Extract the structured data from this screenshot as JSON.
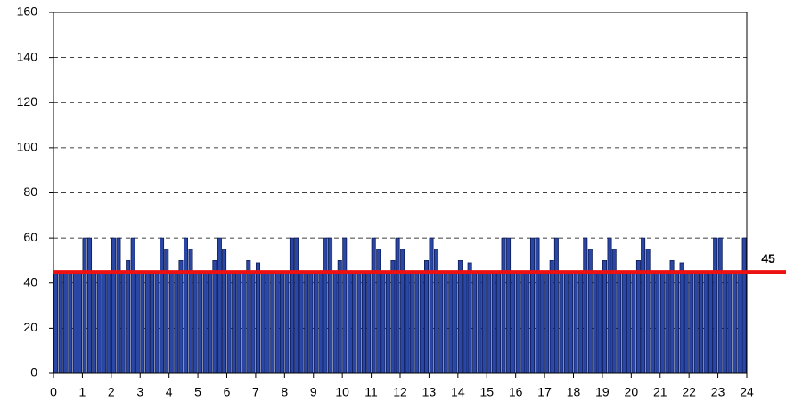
{
  "chart_data": {
    "type": "bar",
    "x": [
      0,
      0.17,
      0.33,
      0.5,
      0.67,
      0.83,
      1,
      1.17,
      1.33,
      1.5,
      1.67,
      1.83,
      2,
      2.17,
      2.33,
      2.5,
      2.67,
      2.83,
      3,
      3.17,
      3.33,
      3.5,
      3.67,
      3.83,
      4,
      4.17,
      4.33,
      4.5,
      4.67,
      4.83,
      5,
      5.17,
      5.33,
      5.5,
      5.67,
      5.83,
      6,
      6.17,
      6.33,
      6.5,
      6.67,
      6.83,
      7,
      7.17,
      7.33,
      7.5,
      7.67,
      7.83,
      8,
      8.17,
      8.33,
      8.5,
      8.67,
      8.83,
      9,
      9.17,
      9.33,
      9.5,
      9.67,
      9.83,
      10,
      10.17,
      10.33,
      10.5,
      10.67,
      10.83,
      11,
      11.17,
      11.33,
      11.5,
      11.67,
      11.83,
      12,
      12.17,
      12.33,
      12.5,
      12.67,
      12.83,
      13,
      13.17,
      13.33,
      13.5,
      13.67,
      13.83,
      14,
      14.17,
      14.33,
      14.5,
      14.67,
      14.83,
      15,
      15.17,
      15.33,
      15.5,
      15.67,
      15.83,
      16,
      16.17,
      16.33,
      16.5,
      16.67,
      16.83,
      17,
      17.17,
      17.33,
      17.5,
      17.67,
      17.83,
      18,
      18.17,
      18.33,
      18.5,
      18.67,
      18.83,
      19,
      19.17,
      19.33,
      19.5,
      19.67,
      19.83,
      20,
      20.17,
      20.33,
      20.5,
      20.67,
      20.83,
      21,
      21.17,
      21.33,
      21.5,
      21.67,
      21.83,
      22,
      22.17,
      22.33,
      22.5,
      22.67,
      22.83,
      23,
      23.17,
      23.33,
      23.5,
      23.67,
      23.83
    ],
    "values": [
      45,
      45,
      45,
      45,
      45,
      45,
      60,
      60,
      45,
      45,
      45,
      45,
      60,
      60,
      45,
      50,
      60,
      45,
      45,
      45,
      45,
      45,
      60,
      55,
      45,
      45,
      50,
      60,
      55,
      45,
      45,
      45,
      45,
      50,
      60,
      55,
      45,
      45,
      45,
      45,
      50,
      45,
      49,
      45,
      45,
      45,
      45,
      45,
      45,
      60,
      60,
      45,
      45,
      45,
      45,
      45,
      60,
      60,
      45,
      50,
      60,
      45,
      45,
      45,
      45,
      45,
      60,
      55,
      45,
      45,
      50,
      60,
      55,
      45,
      45,
      45,
      45,
      50,
      60,
      55,
      45,
      45,
      45,
      45,
      50,
      45,
      49,
      45,
      45,
      45,
      45,
      45,
      45,
      60,
      60,
      45,
      45,
      45,
      45,
      60,
      60,
      45,
      45,
      50,
      60,
      45,
      45,
      45,
      45,
      45,
      60,
      55,
      45,
      45,
      50,
      60,
      55,
      45,
      45,
      45,
      45,
      50,
      60,
      55,
      45,
      45,
      45,
      45,
      50,
      45,
      49,
      45,
      45,
      45,
      45,
      45,
      45,
      60,
      60,
      45,
      45,
      45,
      45,
      60
    ],
    "color": "#2b47a6",
    "xlim": [
      0,
      24
    ],
    "xticks": [
      0,
      1,
      2,
      3,
      4,
      5,
      6,
      7,
      8,
      9,
      10,
      11,
      12,
      13,
      14,
      15,
      16,
      17,
      18,
      19,
      20,
      21,
      22,
      23,
      24
    ],
    "ylim": [
      0,
      160
    ],
    "yticks": [
      0,
      20,
      40,
      60,
      80,
      100,
      120,
      140,
      160
    ],
    "grid": true,
    "reference_line": {
      "value": 45,
      "color": "#ee1111"
    }
  }
}
